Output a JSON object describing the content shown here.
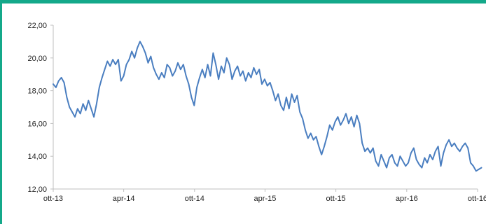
{
  "colors": {
    "frame": "#14a98a",
    "line": "#4a7ec0",
    "axis": "#bfbfbf",
    "text": "#222222"
  },
  "chart_data": {
    "type": "line",
    "title": "",
    "xlabel": "",
    "ylabel": "",
    "grid": false,
    "legend": "none",
    "ylim": [
      12,
      22
    ],
    "xlim": [
      "2013-10",
      "2016-10"
    ],
    "y_ticks": [
      "12,00",
      "14,00",
      "16,00",
      "18,00",
      "20,00",
      "22,00"
    ],
    "x_ticks": [
      "ott-13",
      "apr-14",
      "ott-14",
      "apr-15",
      "ott-15",
      "apr-16",
      "ott-16"
    ],
    "series": [
      {
        "points": [
          [
            "2013-10-01",
            18.4
          ],
          [
            "2013-10-08",
            18.2
          ],
          [
            "2013-10-15",
            18.6
          ],
          [
            "2013-10-22",
            18.8
          ],
          [
            "2013-10-29",
            18.5
          ],
          [
            "2013-11-05",
            17.6
          ],
          [
            "2013-11-12",
            17.0
          ],
          [
            "2013-11-19",
            16.7
          ],
          [
            "2013-11-26",
            16.4
          ],
          [
            "2013-12-03",
            16.9
          ],
          [
            "2013-12-10",
            16.6
          ],
          [
            "2013-12-17",
            17.2
          ],
          [
            "2013-12-24",
            16.8
          ],
          [
            "2013-12-31",
            17.4
          ],
          [
            "2014-01-07",
            16.9
          ],
          [
            "2014-01-14",
            16.4
          ],
          [
            "2014-01-21",
            17.2
          ],
          [
            "2014-01-28",
            18.2
          ],
          [
            "2014-02-04",
            18.8
          ],
          [
            "2014-02-11",
            19.3
          ],
          [
            "2014-02-18",
            19.8
          ],
          [
            "2014-02-25",
            19.5
          ],
          [
            "2014-03-04",
            19.9
          ],
          [
            "2014-03-11",
            19.6
          ],
          [
            "2014-03-18",
            19.9
          ],
          [
            "2014-03-25",
            18.6
          ],
          [
            "2014-04-01",
            18.9
          ],
          [
            "2014-04-08",
            19.6
          ],
          [
            "2014-04-15",
            19.9
          ],
          [
            "2014-04-22",
            20.4
          ],
          [
            "2014-04-29",
            20.0
          ],
          [
            "2014-05-06",
            20.6
          ],
          [
            "2014-05-13",
            21.0
          ],
          [
            "2014-05-20",
            20.7
          ],
          [
            "2014-05-27",
            20.3
          ],
          [
            "2014-06-03",
            19.7
          ],
          [
            "2014-06-10",
            20.1
          ],
          [
            "2014-06-17",
            19.4
          ],
          [
            "2014-06-24",
            19.0
          ],
          [
            "2014-07-01",
            18.7
          ],
          [
            "2014-07-08",
            19.1
          ],
          [
            "2014-07-15",
            18.8
          ],
          [
            "2014-07-22",
            19.6
          ],
          [
            "2014-07-29",
            19.4
          ],
          [
            "2014-08-05",
            18.9
          ],
          [
            "2014-08-12",
            19.2
          ],
          [
            "2014-08-19",
            19.7
          ],
          [
            "2014-08-26",
            19.3
          ],
          [
            "2014-09-02",
            19.6
          ],
          [
            "2014-09-09",
            18.9
          ],
          [
            "2014-09-16",
            18.4
          ],
          [
            "2014-09-23",
            17.6
          ],
          [
            "2014-09-30",
            17.1
          ],
          [
            "2014-10-07",
            18.2
          ],
          [
            "2014-10-14",
            18.8
          ],
          [
            "2014-10-21",
            19.3
          ],
          [
            "2014-10-28",
            18.8
          ],
          [
            "2014-11-04",
            19.6
          ],
          [
            "2014-11-11",
            18.9
          ],
          [
            "2014-11-18",
            20.3
          ],
          [
            "2014-11-25",
            19.6
          ],
          [
            "2014-12-02",
            18.7
          ],
          [
            "2014-12-09",
            19.5
          ],
          [
            "2014-12-16",
            19.1
          ],
          [
            "2014-12-23",
            20.0
          ],
          [
            "2014-12-30",
            19.6
          ],
          [
            "2015-01-06",
            18.7
          ],
          [
            "2015-01-13",
            19.2
          ],
          [
            "2015-01-20",
            19.5
          ],
          [
            "2015-01-27",
            18.9
          ],
          [
            "2015-02-03",
            19.2
          ],
          [
            "2015-02-10",
            18.6
          ],
          [
            "2015-02-17",
            19.1
          ],
          [
            "2015-02-24",
            18.8
          ],
          [
            "2015-03-03",
            19.4
          ],
          [
            "2015-03-10",
            19.0
          ],
          [
            "2015-03-17",
            19.3
          ],
          [
            "2015-03-24",
            18.4
          ],
          [
            "2015-03-31",
            18.7
          ],
          [
            "2015-04-07",
            18.3
          ],
          [
            "2015-04-14",
            18.5
          ],
          [
            "2015-04-21",
            18.0
          ],
          [
            "2015-04-28",
            17.4
          ],
          [
            "2015-05-05",
            17.8
          ],
          [
            "2015-05-12",
            17.1
          ],
          [
            "2015-05-19",
            16.8
          ],
          [
            "2015-05-26",
            17.6
          ],
          [
            "2015-06-02",
            16.9
          ],
          [
            "2015-06-09",
            17.8
          ],
          [
            "2015-06-16",
            17.3
          ],
          [
            "2015-06-23",
            17.7
          ],
          [
            "2015-06-30",
            16.7
          ],
          [
            "2015-07-07",
            16.3
          ],
          [
            "2015-07-14",
            15.6
          ],
          [
            "2015-07-21",
            15.1
          ],
          [
            "2015-07-28",
            15.4
          ],
          [
            "2015-08-04",
            15.0
          ],
          [
            "2015-08-11",
            15.2
          ],
          [
            "2015-08-18",
            14.6
          ],
          [
            "2015-08-25",
            14.1
          ],
          [
            "2015-09-01",
            14.6
          ],
          [
            "2015-09-08",
            15.2
          ],
          [
            "2015-09-15",
            15.9
          ],
          [
            "2015-09-22",
            15.6
          ],
          [
            "2015-09-29",
            16.1
          ],
          [
            "2015-10-06",
            16.4
          ],
          [
            "2015-10-13",
            15.9
          ],
          [
            "2015-10-20",
            16.2
          ],
          [
            "2015-10-27",
            16.6
          ],
          [
            "2015-11-03",
            16.0
          ],
          [
            "2015-11-10",
            16.4
          ],
          [
            "2015-11-17",
            15.8
          ],
          [
            "2015-11-24",
            16.5
          ],
          [
            "2015-12-01",
            16.0
          ],
          [
            "2015-12-08",
            14.8
          ],
          [
            "2015-12-15",
            14.3
          ],
          [
            "2015-12-22",
            14.5
          ],
          [
            "2015-12-29",
            14.2
          ],
          [
            "2016-01-05",
            14.5
          ],
          [
            "2016-01-12",
            13.7
          ],
          [
            "2016-01-19",
            13.4
          ],
          [
            "2016-01-26",
            14.1
          ],
          [
            "2016-02-02",
            13.7
          ],
          [
            "2016-02-09",
            13.3
          ],
          [
            "2016-02-16",
            13.9
          ],
          [
            "2016-02-23",
            14.1
          ],
          [
            "2016-03-01",
            13.6
          ],
          [
            "2016-03-08",
            13.4
          ],
          [
            "2016-03-15",
            14.0
          ],
          [
            "2016-03-22",
            13.7
          ],
          [
            "2016-03-29",
            13.4
          ],
          [
            "2016-04-05",
            13.6
          ],
          [
            "2016-04-12",
            14.2
          ],
          [
            "2016-04-19",
            14.5
          ],
          [
            "2016-04-26",
            13.8
          ],
          [
            "2016-05-03",
            13.5
          ],
          [
            "2016-05-10",
            13.3
          ],
          [
            "2016-05-17",
            13.9
          ],
          [
            "2016-05-24",
            13.6
          ],
          [
            "2016-05-31",
            14.1
          ],
          [
            "2016-06-07",
            13.8
          ],
          [
            "2016-06-14",
            14.3
          ],
          [
            "2016-06-21",
            14.6
          ],
          [
            "2016-06-28",
            13.4
          ],
          [
            "2016-07-05",
            14.2
          ],
          [
            "2016-07-12",
            14.7
          ],
          [
            "2016-07-19",
            15.0
          ],
          [
            "2016-07-26",
            14.6
          ],
          [
            "2016-08-02",
            14.8
          ],
          [
            "2016-08-09",
            14.5
          ],
          [
            "2016-08-16",
            14.3
          ],
          [
            "2016-08-23",
            14.6
          ],
          [
            "2016-08-30",
            14.8
          ],
          [
            "2016-09-06",
            14.5
          ],
          [
            "2016-09-13",
            13.6
          ],
          [
            "2016-09-20",
            13.4
          ],
          [
            "2016-09-27",
            13.1
          ],
          [
            "2016-10-04",
            13.2
          ],
          [
            "2016-10-11",
            13.3
          ]
        ]
      }
    ]
  }
}
